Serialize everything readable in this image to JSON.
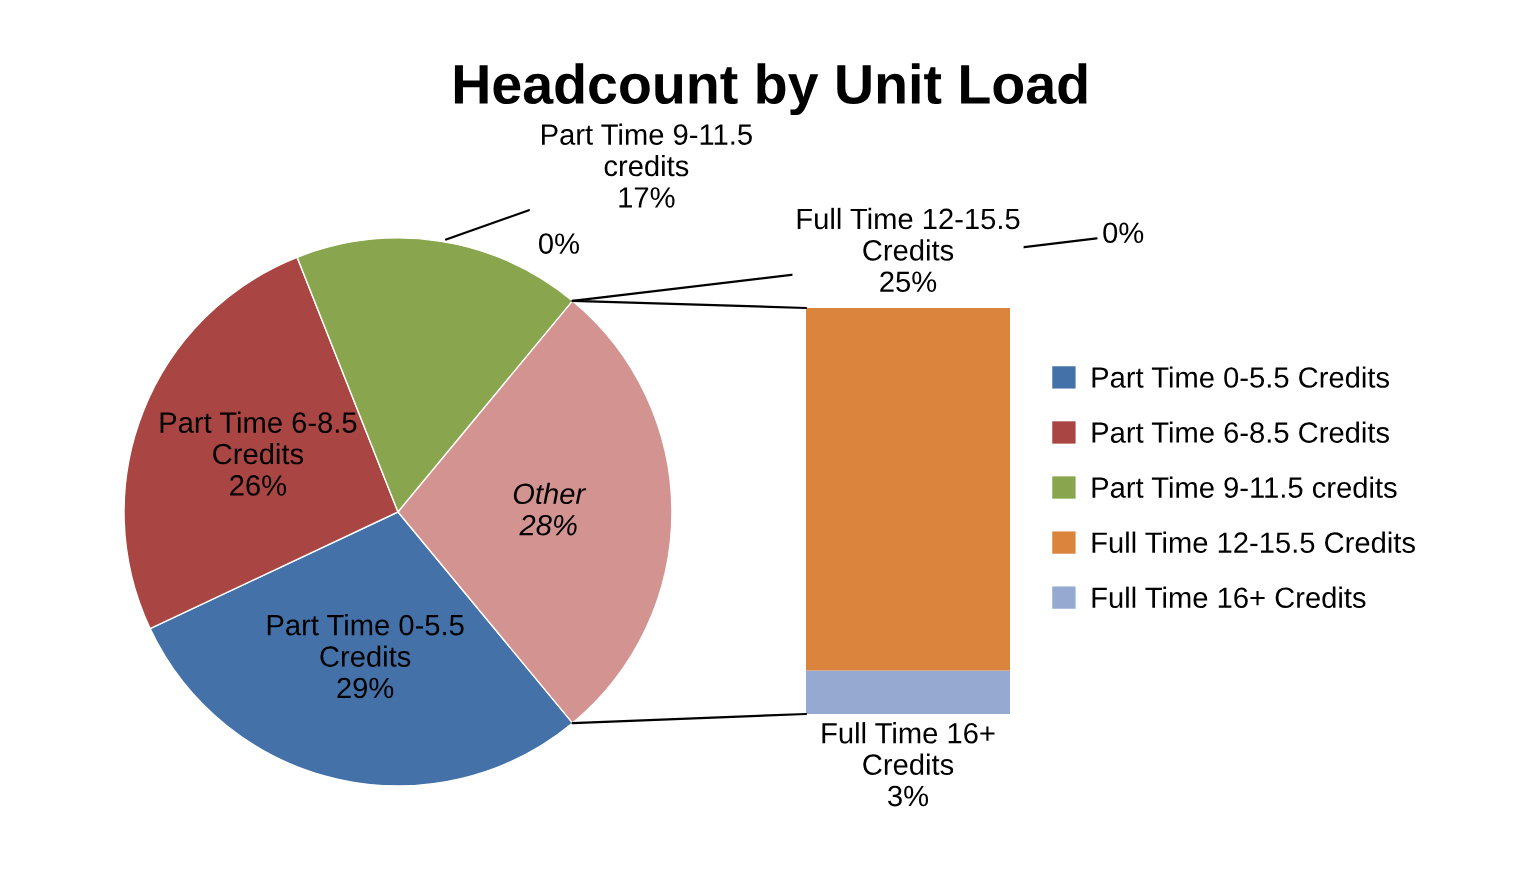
{
  "chart_data": [
    {
      "type": "pie",
      "title": "Headcount by Unit Load",
      "categories": [
        "Part Time 0-5.5 Credits",
        "Part Time 6-8.5 Credits",
        "Part Time 9-11.5 credits",
        "Other"
      ],
      "values": [
        29,
        26,
        17,
        28
      ],
      "colors": [
        "#4472a8",
        "#a94542",
        "#89a64e",
        "#d39391"
      ],
      "value_labels": [
        "29%",
        "26%",
        "17%",
        "28%"
      ],
      "legend": "right",
      "annotations": [
        "0%",
        "0%"
      ]
    },
    {
      "type": "bar",
      "stacked": true,
      "categories": [
        null
      ],
      "legend": "right",
      "series": [
        {
          "name": "Full Time 16+ Credits",
          "color": "#95a9d1",
          "values": [
            3
          ],
          "value_labels": [
            "3%"
          ]
        },
        {
          "name": "Full Time 12-15.5 Credits",
          "color": "#db843e",
          "values": [
            25
          ],
          "value_labels": [
            "25%"
          ]
        }
      ]
    }
  ]
}
